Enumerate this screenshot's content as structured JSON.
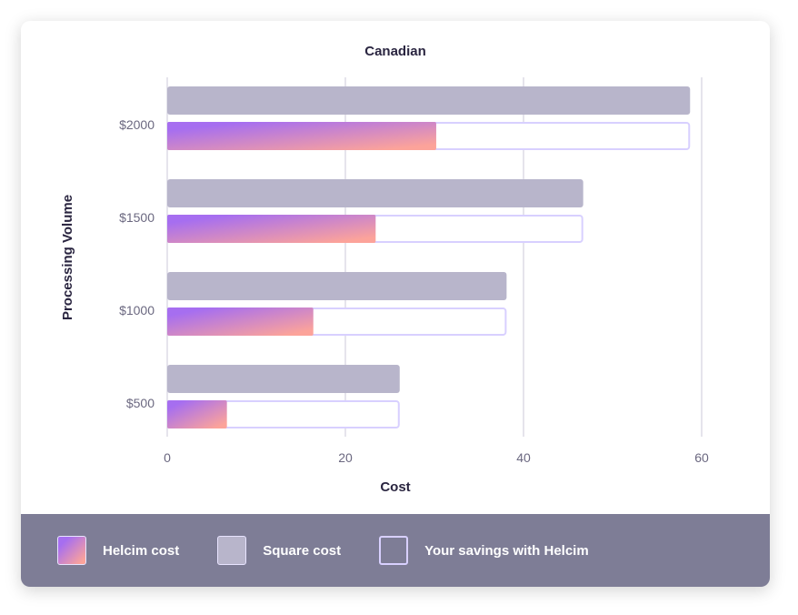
{
  "chart_data": {
    "type": "bar",
    "orientation": "horizontal",
    "title": "Canadian",
    "xlabel": "Cost",
    "ylabel": "Processing Volume",
    "categories": [
      "$2000",
      "$1500",
      "$1000",
      "$500"
    ],
    "xlim": [
      0,
      60
    ],
    "xticks": [
      "0",
      "20",
      "40",
      "60"
    ],
    "grid": true,
    "legend_position": "bottom",
    "series": [
      {
        "name": "Square cost",
        "values": [
          58.7,
          46.7,
          38.1,
          26.1
        ],
        "color": "#b8b5cb"
      },
      {
        "name": "Helcim cost",
        "values": [
          30.2,
          23.4,
          16.4,
          6.7
        ],
        "color": "gradient #a66ef0 → #fca39a"
      }
    ],
    "savings_label": "Your savings with Helcim",
    "savings_color": "#d8d0ff"
  },
  "legend": {
    "items": [
      {
        "label": "Helcim cost"
      },
      {
        "label": "Square cost"
      },
      {
        "label": "Your savings with Helcim"
      }
    ],
    "background": "#7e7d96"
  }
}
